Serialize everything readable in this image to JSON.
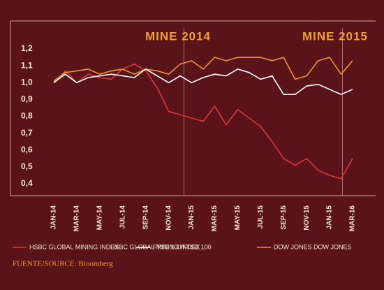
{
  "chart_data": {
    "type": "line",
    "annotations": [
      "MINE 2014",
      "MINE 2015"
    ],
    "source": "FUENTE/SOURCE: Bloomberg",
    "categories": [
      "JAN-14",
      null,
      "MAR-14",
      null,
      "MAY-14",
      null,
      "JUL-14",
      null,
      "SEP-14",
      null,
      "NOV-14",
      null,
      "JAN-15",
      null,
      "MAR-15",
      null,
      "MAY-15",
      null,
      "JUL-15",
      null,
      "SEP-15",
      null,
      "NOV-15",
      null,
      "JAN-15",
      null,
      "MAR-16"
    ],
    "ylim": [
      0.4,
      1.2
    ],
    "yticks": [
      {
        "value": 0.4,
        "label": "0,4"
      },
      {
        "value": 0.5,
        "label": "0,5"
      },
      {
        "value": 0.6,
        "label": "0,6"
      },
      {
        "value": 0.7,
        "label": "0,7"
      },
      {
        "value": 0.8,
        "label": "0,8"
      },
      {
        "value": 0.9,
        "label": "0,9"
      },
      {
        "value": 1.0,
        "label": "1,0"
      },
      {
        "value": 1.1,
        "label": "1,1"
      },
      {
        "value": 1.2,
        "label": "1,2"
      }
    ],
    "grid": false,
    "series": [
      {
        "name": "HSBC GLOBAL MINING INDEX",
        "color": "#d8383c",
        "values": [
          1.0,
          1.07,
          1.0,
          1.05,
          1.03,
          1.02,
          1.08,
          1.11,
          1.07,
          0.97,
          0.83,
          0.81,
          0.79,
          0.77,
          0.86,
          0.75,
          0.84,
          0.79,
          0.74,
          0.65,
          0.55,
          0.51,
          0.55,
          0.48,
          0.45,
          0.43,
          0.55
        ]
      },
      {
        "name": "FTSE 100/FTSE 100",
        "color": "#ffffff",
        "values": [
          1.0,
          1.05,
          1.0,
          1.03,
          1.04,
          1.05,
          1.04,
          1.03,
          1.08,
          1.04,
          1.0,
          1.04,
          1.0,
          1.03,
          1.05,
          1.04,
          1.08,
          1.06,
          1.02,
          1.04,
          0.93,
          0.93,
          0.98,
          0.99,
          0.96,
          0.93,
          0.96
        ]
      },
      {
        "name": "DOW JONES DOW JONES",
        "color": "#eb952c",
        "values": [
          1.01,
          1.06,
          1.07,
          1.08,
          1.05,
          1.07,
          1.08,
          1.05,
          1.08,
          1.07,
          1.05,
          1.11,
          1.13,
          1.08,
          1.15,
          1.13,
          1.15,
          1.15,
          1.15,
          1.13,
          1.15,
          1.02,
          1.04,
          1.13,
          1.15,
          1.05,
          1.13
        ]
      }
    ]
  }
}
